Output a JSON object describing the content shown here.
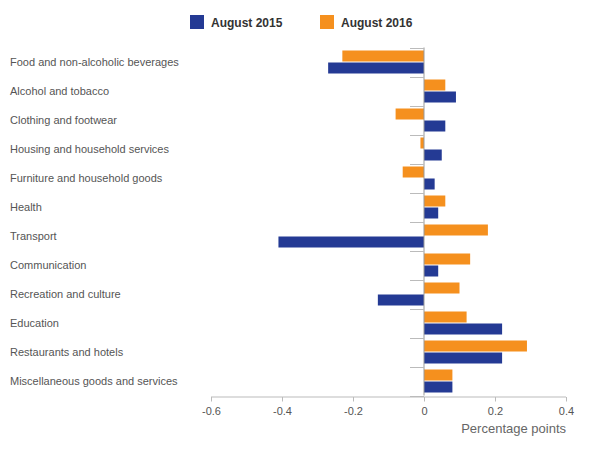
{
  "chart_data": {
    "type": "bar",
    "orientation": "horizontal",
    "x_label": "Percentage points",
    "categories": [
      "Food and non-alcoholic beverages",
      "Alcohol and tobacco",
      "Clothing and footwear",
      "Housing and household services",
      "Furniture and household goods",
      "Health",
      "Transport",
      "Communication",
      "Recreation and culture",
      "Education",
      "Restaurants and hotels",
      "Miscellaneous goods and services"
    ],
    "series": [
      {
        "name": "August 2015",
        "color": "#243a94",
        "values": [
          -0.27,
          0.09,
          0.06,
          0.05,
          0.03,
          0.04,
          -0.41,
          0.04,
          -0.13,
          0.22,
          0.22,
          0.08
        ]
      },
      {
        "name": "August 2016",
        "color": "#f5901e",
        "values": [
          -0.23,
          0.06,
          -0.08,
          -0.01,
          -0.06,
          0.06,
          0.18,
          0.13,
          0.1,
          0.12,
          0.29,
          0.08
        ]
      }
    ],
    "xlim": [
      -0.6,
      0.4
    ],
    "xticks": [
      -0.6,
      -0.4,
      -0.2,
      0,
      0.2,
      0.4
    ],
    "legend": "top",
    "grid": false
  }
}
